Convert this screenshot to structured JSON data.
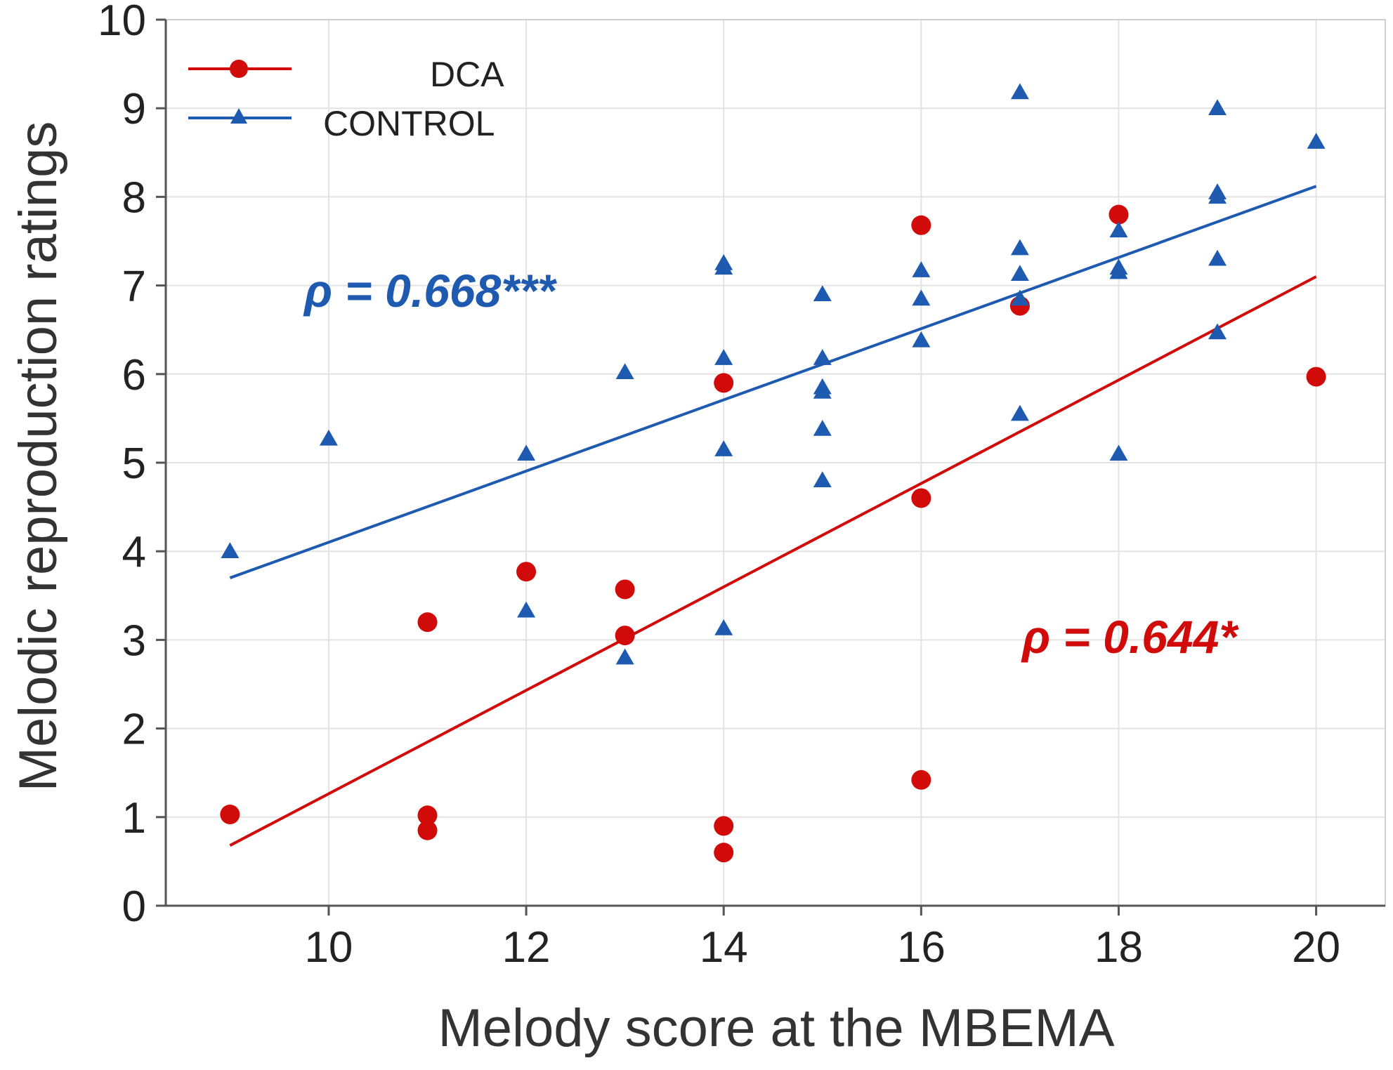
{
  "chart_data": {
    "type": "scatter",
    "title": "",
    "xlabel": "Melody score at the MBEMA",
    "ylabel": "Melodic reproduction ratings",
    "xlim": [
      8.35,
      20.7
    ],
    "ylim": [
      0,
      10
    ],
    "xticks": [
      10,
      12,
      14,
      16,
      18,
      20
    ],
    "yticks": [
      0,
      1,
      2,
      3,
      4,
      5,
      6,
      7,
      8,
      9,
      10
    ],
    "grid": true,
    "legend_position": "top-left",
    "series": [
      {
        "name": "DCA",
        "color": "#d10a0a",
        "marker": "circle",
        "points": [
          [
            9,
            1.03
          ],
          [
            11,
            3.2
          ],
          [
            11,
            1.02
          ],
          [
            11,
            0.85
          ],
          [
            12,
            3.77
          ],
          [
            13,
            3.57
          ],
          [
            13,
            3.05
          ],
          [
            14,
            5.9
          ],
          [
            14,
            0.9
          ],
          [
            14,
            0.6
          ],
          [
            16,
            7.68
          ],
          [
            16,
            4.6
          ],
          [
            16,
            1.42
          ],
          [
            17,
            6.77
          ],
          [
            18,
            7.8
          ],
          [
            20,
            5.97
          ]
        ],
        "fit": {
          "x": [
            9,
            20
          ],
          "y": [
            0.68,
            7.1
          ]
        },
        "annotation": "ρ = 0.644*"
      },
      {
        "name": "CONTROL",
        "color": "#1e5bb0",
        "marker": "triangle",
        "points": [
          [
            9,
            4.0
          ],
          [
            10,
            5.27
          ],
          [
            12,
            5.1
          ],
          [
            12,
            3.33
          ],
          [
            13,
            6.02
          ],
          [
            13,
            2.8
          ],
          [
            14,
            7.25
          ],
          [
            14,
            7.2
          ],
          [
            14,
            6.18
          ],
          [
            14,
            5.15
          ],
          [
            14,
            3.13
          ],
          [
            15,
            6.9
          ],
          [
            15,
            6.18
          ],
          [
            15,
            5.85
          ],
          [
            15,
            5.8
          ],
          [
            15,
            5.38
          ],
          [
            15,
            4.8
          ],
          [
            16,
            7.17
          ],
          [
            16,
            6.85
          ],
          [
            16,
            6.38
          ],
          [
            17,
            9.18
          ],
          [
            17,
            7.42
          ],
          [
            17,
            7.13
          ],
          [
            17,
            6.85
          ],
          [
            17,
            5.55
          ],
          [
            18,
            7.62
          ],
          [
            18,
            7.2
          ],
          [
            18,
            7.15
          ],
          [
            18,
            5.1
          ],
          [
            19,
            9.0
          ],
          [
            19,
            8.05
          ],
          [
            19,
            8.0
          ],
          [
            19,
            7.3
          ],
          [
            19,
            6.47
          ],
          [
            20,
            8.62
          ]
        ],
        "fit": {
          "x": [
            9,
            20
          ],
          "y": [
            3.7,
            8.12
          ]
        },
        "annotation": "ρ = 0.668***"
      }
    ]
  }
}
